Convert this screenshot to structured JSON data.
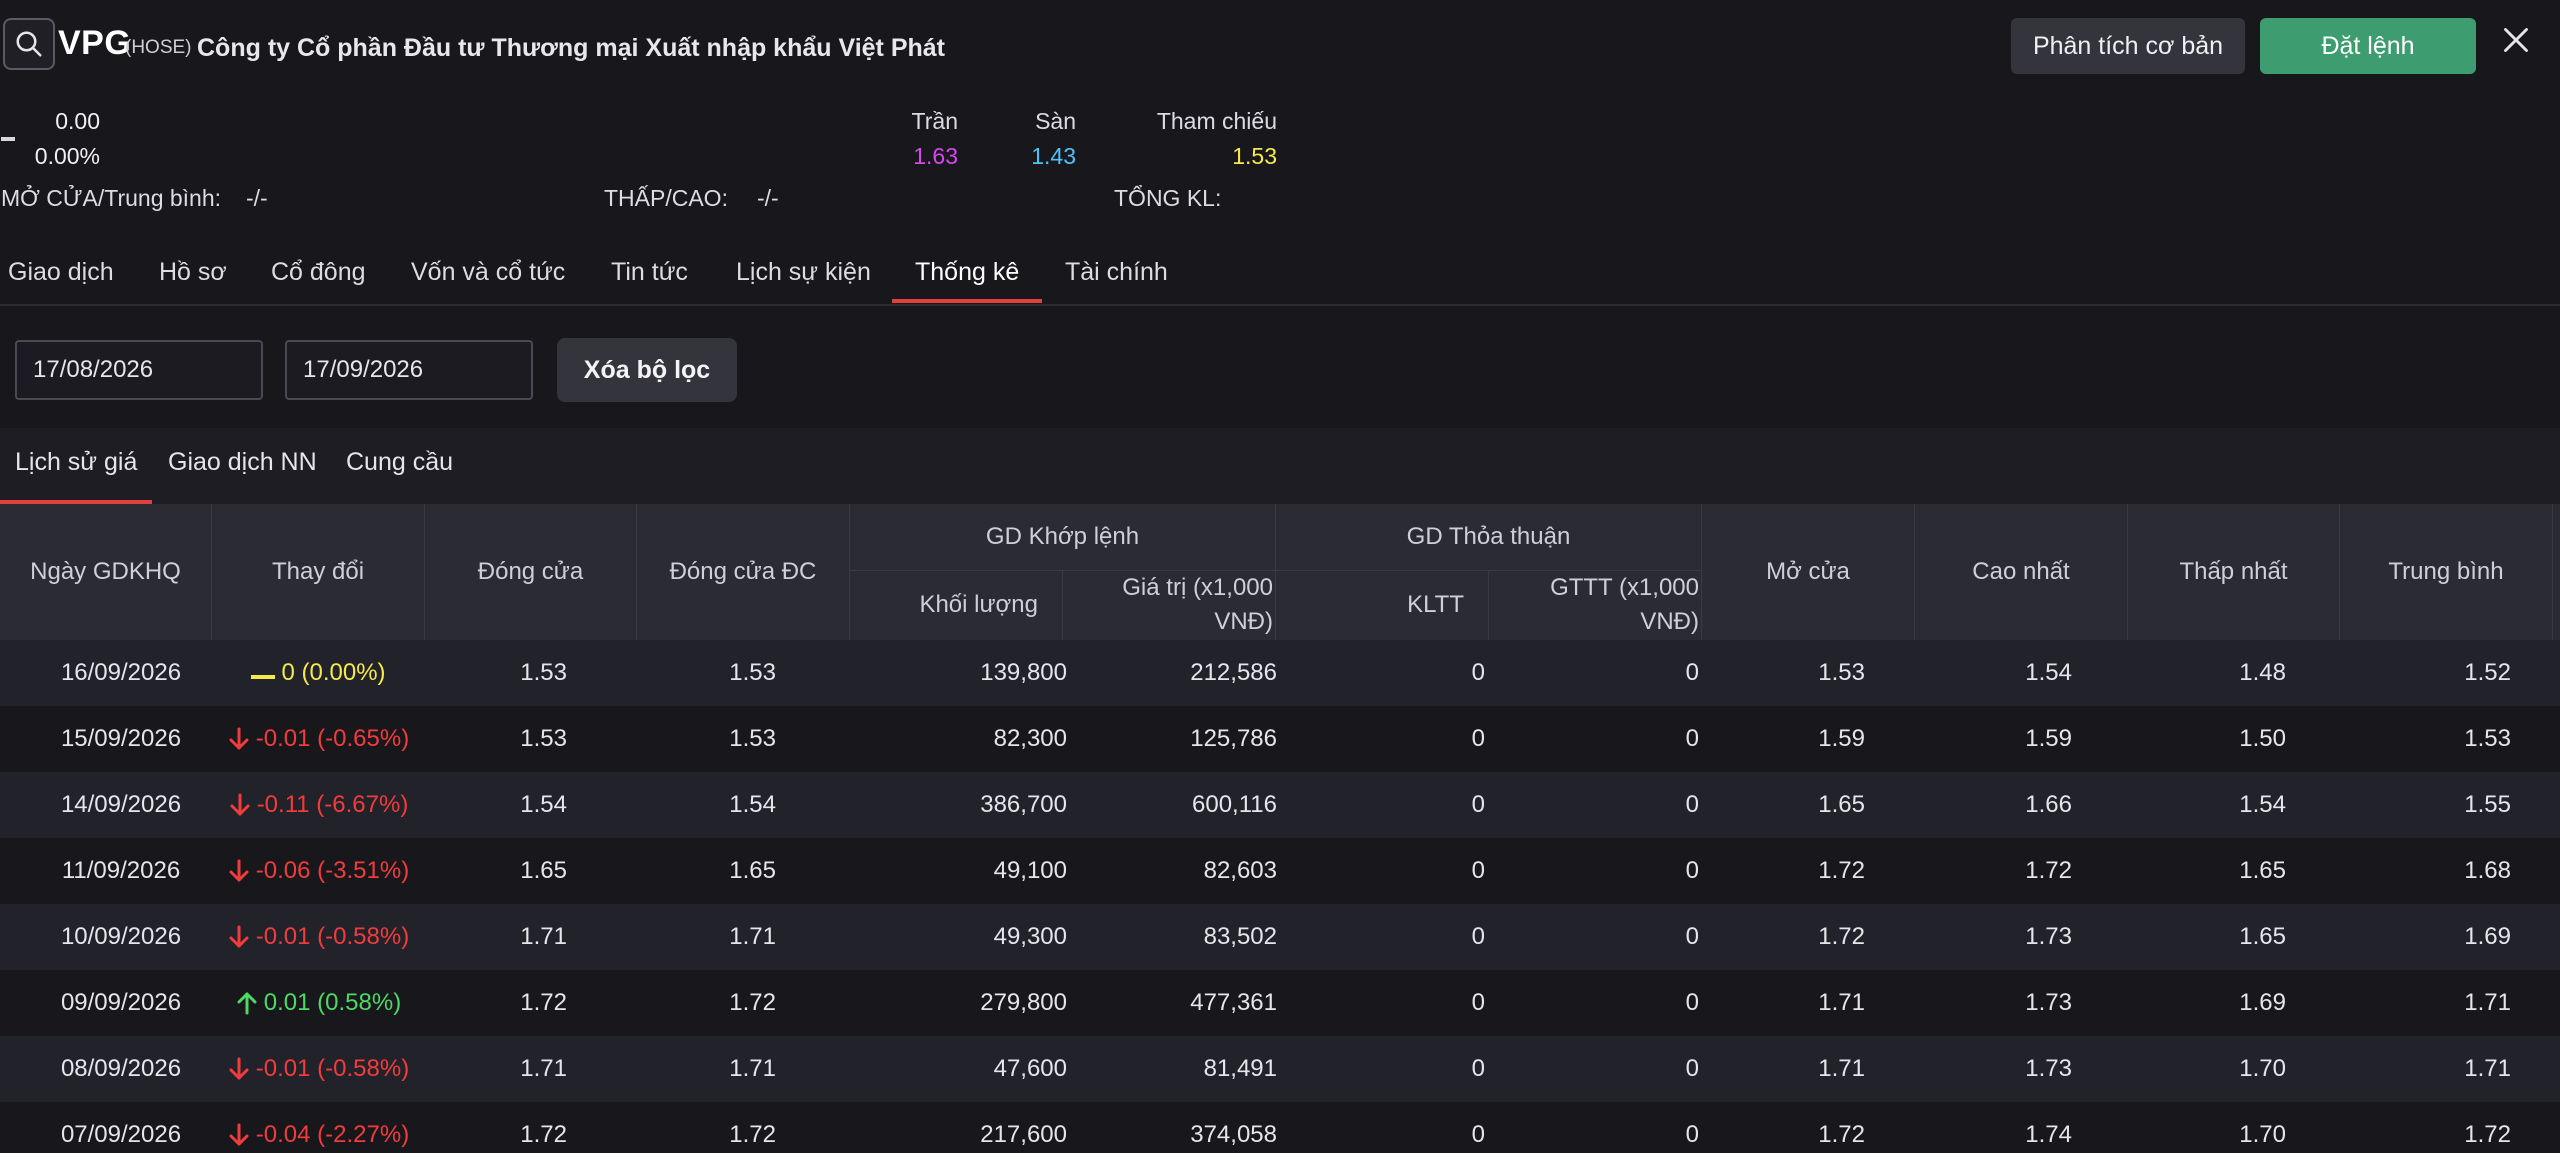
{
  "header": {
    "ticker": "VPG",
    "exchange": "(HOSE)",
    "company": "Công ty Cổ phần Đầu tư Thương mại Xuất nhập khẩu Việt Phát",
    "analysis_label": "Phân tích cơ bản",
    "order_label": "Đặt lệnh"
  },
  "price": {
    "value": "0.00",
    "percent": "0.00%",
    "ceiling_label": "Trần",
    "ceiling": "1.63",
    "floor_label": "Sàn",
    "floor": "1.43",
    "ref_label": "Tham chiếu",
    "ref": "1.53",
    "open_label": "MỞ CỬA/Trung bình:",
    "open_value": "-/-",
    "lowhigh_label": "THẤP/CAO:",
    "lowhigh_value": "-/-",
    "volume_label": "TỔNG KL:",
    "colors": {
      "ceiling": "#d946ef",
      "floor": "#4fc3f7",
      "ref": "#f6e94b"
    }
  },
  "tabs": [
    "Giao dịch",
    "Hồ sơ",
    "Cổ đông",
    "Vốn và cổ tức",
    "Tin tức",
    "Lịch sự kiện",
    "Thống kê",
    "Tài chính"
  ],
  "active_tab": "Thống kê",
  "filters": {
    "from_date": "17/08/2026",
    "to_date": "17/09/2026",
    "clear_label": "Xóa bộ lọc"
  },
  "subtabs": [
    "Lịch sử giá",
    "Giao dịch NN",
    "Cung cầu"
  ],
  "active_subtab": "Lịch sử giá",
  "table": {
    "headers": {
      "date": "Ngày GDKHQ",
      "change": "Thay đổi",
      "close": "Đóng cửa",
      "adj_close": "Đóng cửa ĐC",
      "matched_group": "GD Khớp lệnh",
      "matched_volume": "Khối lượng",
      "matched_value": "Giá trị (x1,000 VNĐ)",
      "deal_group": "GD Thỏa thuận",
      "deal_volume": "KLTT",
      "deal_value": "GTTT (x1,000 VNĐ)",
      "open": "Mở cửa",
      "high": "Cao nhất",
      "low": "Thấp nhất",
      "avg": "Trung bình"
    },
    "rows": [
      {
        "date": "16/09/2026",
        "dir": "flat",
        "change": "0 (0.00%)",
        "close": "1.53",
        "adj_close": "1.53",
        "volume": "139,800",
        "value": "212,586",
        "kltt": "0",
        "gttt": "0",
        "open": "1.53",
        "high": "1.54",
        "low": "1.48",
        "avg": "1.52"
      },
      {
        "date": "15/09/2026",
        "dir": "down",
        "change": "-0.01 (-0.65%)",
        "close": "1.53",
        "adj_close": "1.53",
        "volume": "82,300",
        "value": "125,786",
        "kltt": "0",
        "gttt": "0",
        "open": "1.59",
        "high": "1.59",
        "low": "1.50",
        "avg": "1.53"
      },
      {
        "date": "14/09/2026",
        "dir": "down",
        "change": "-0.11 (-6.67%)",
        "close": "1.54",
        "adj_close": "1.54",
        "volume": "386,700",
        "value": "600,116",
        "kltt": "0",
        "gttt": "0",
        "open": "1.65",
        "high": "1.66",
        "low": "1.54",
        "avg": "1.55"
      },
      {
        "date": "11/09/2026",
        "dir": "down",
        "change": "-0.06 (-3.51%)",
        "close": "1.65",
        "adj_close": "1.65",
        "volume": "49,100",
        "value": "82,603",
        "kltt": "0",
        "gttt": "0",
        "open": "1.72",
        "high": "1.72",
        "low": "1.65",
        "avg": "1.68"
      },
      {
        "date": "10/09/2026",
        "dir": "down",
        "change": "-0.01 (-0.58%)",
        "close": "1.71",
        "adj_close": "1.71",
        "volume": "49,300",
        "value": "83,502",
        "kltt": "0",
        "gttt": "0",
        "open": "1.72",
        "high": "1.73",
        "low": "1.65",
        "avg": "1.69"
      },
      {
        "date": "09/09/2026",
        "dir": "up",
        "change": "0.01 (0.58%)",
        "close": "1.72",
        "adj_close": "1.72",
        "volume": "279,800",
        "value": "477,361",
        "kltt": "0",
        "gttt": "0",
        "open": "1.71",
        "high": "1.73",
        "low": "1.69",
        "avg": "1.71"
      },
      {
        "date": "08/09/2026",
        "dir": "down",
        "change": "-0.01 (-0.58%)",
        "close": "1.71",
        "adj_close": "1.71",
        "volume": "47,600",
        "value": "81,491",
        "kltt": "0",
        "gttt": "0",
        "open": "1.71",
        "high": "1.73",
        "low": "1.70",
        "avg": "1.71"
      },
      {
        "date": "07/09/2026",
        "dir": "down",
        "change": "-0.04 (-2.27%)",
        "close": "1.72",
        "adj_close": "1.72",
        "volume": "217,600",
        "value": "374,058",
        "kltt": "0",
        "gttt": "0",
        "open": "1.72",
        "high": "1.74",
        "low": "1.70",
        "avg": "1.72"
      }
    ]
  },
  "icons": {
    "search": "search-icon",
    "close": "close-icon",
    "up": "arrow-up-icon",
    "down": "arrow-down-icon",
    "flat": "flat-bar-icon"
  },
  "colors": {
    "accent_red": "#e0413c",
    "order_green": "#3d9c70",
    "up": "#4cd964",
    "down": "#f23c3c",
    "flat": "#f6e94b"
  }
}
